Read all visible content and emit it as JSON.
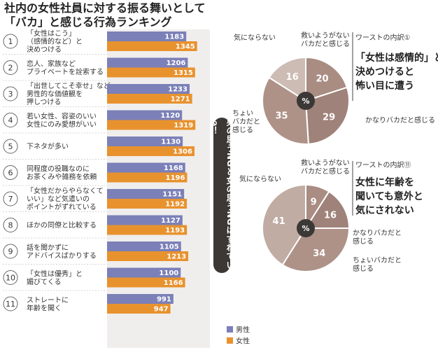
{
  "title": [
    "社内の女性社員に対する振る舞いとして",
    "「バカ」と感じる行為ランキング"
  ],
  "vertical_note": "男の思うNGと女の思うNGはずれている！",
  "legend": [
    {
      "name": "男性",
      "color": "#7b80b8"
    },
    {
      "name": "女性",
      "color": "#e8922e"
    }
  ],
  "chart_data": [
    {
      "type": "bar",
      "series": [
        {
          "name": "男性",
          "values": [
            1183,
            1206,
            1233,
            1120,
            1130,
            1168,
            1151,
            1127,
            1105,
            1100,
            991
          ]
        },
        {
          "name": "女性",
          "values": [
            1345,
            1315,
            1271,
            1319,
            1306,
            1196,
            1192,
            1193,
            1213,
            1166,
            947
          ]
        }
      ],
      "categories": [
        {
          "rank": "1",
          "lines": [
            "「女性はこう」",
            "（感情的など）と",
            "決めつける"
          ]
        },
        {
          "rank": "2",
          "lines": [
            "恋人、家族など",
            "プライベートを詮索する"
          ]
        },
        {
          "rank": "3",
          "lines": [
            "「出世してこそ幸せ」など",
            "男性的な価値観を",
            "押しつける"
          ]
        },
        {
          "rank": "4",
          "lines": [
            "若い女性、容姿のいい",
            "女性にのみ愛想がいい"
          ]
        },
        {
          "rank": "5",
          "lines": [
            "下ネタが多い"
          ]
        },
        {
          "rank": "6",
          "lines": [
            "同程度の役職なのに",
            "お茶くみや雑務を依頼"
          ]
        },
        {
          "rank": "7",
          "lines": [
            "「女性だからやらなくて",
            "いい」など気遣いの",
            "ポイントがずれている"
          ]
        },
        {
          "rank": "8",
          "lines": [
            "ほかの同僚と比較する"
          ]
        },
        {
          "rank": "9",
          "lines": [
            "話を聞かずに",
            "アドバイスばかりする"
          ]
        },
        {
          "rank": "10",
          "lines": [
            "「女性は優秀」と",
            "媚びてくる"
          ]
        },
        {
          "rank": "11",
          "lines": [
            "ストレートに",
            "年齢を聞く"
          ]
        }
      ]
    },
    {
      "type": "pie",
      "heading": "ワーストの内訳①",
      "caption": [
        "「女性は感情的」と",
        "決めつけると",
        "怖い目に遭う"
      ],
      "center_label": "%",
      "slices": [
        {
          "label": [
            "救いようがない",
            "バカだと感じる"
          ],
          "value": 20,
          "color": "#a98c82"
        },
        {
          "label": [
            "かなりバカだと感じる"
          ],
          "value": 29,
          "color": "#9f8279"
        },
        {
          "label": [
            "ちょい",
            "バカだと",
            "感じる"
          ],
          "value": 35,
          "color": "#ae9287"
        },
        {
          "label": [
            "気にならない"
          ],
          "value": 16,
          "color": "#cdbcb4"
        }
      ]
    },
    {
      "type": "pie",
      "heading": "ワーストの内訳⑪",
      "caption": [
        "女性に年齢を",
        "聞いても意外と",
        "気にされない"
      ],
      "center_label": "%",
      "slices": [
        {
          "label": [
            "救いようがない",
            "バカだと感じる"
          ],
          "value": 9,
          "color": "#a98c82"
        },
        {
          "label": [
            "かなりバカだと",
            "感じる"
          ],
          "value": 16,
          "color": "#9f8279"
        },
        {
          "label": [
            "ちょいバカだと",
            "感じる"
          ],
          "value": 34,
          "color": "#ae9287"
        },
        {
          "label": [
            "気にならない"
          ],
          "value": 41,
          "color": "#c0aca3"
        }
      ]
    }
  ]
}
